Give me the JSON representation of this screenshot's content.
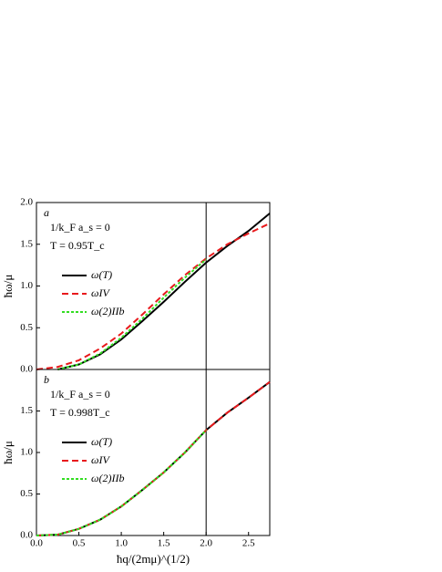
{
  "chart_data": [
    {
      "type": "line",
      "panel_label": "a",
      "annotations": [
        "1/k_F a_s = 0",
        "T = 0.95T_c"
      ],
      "y_label": "ħω/μ",
      "x": [
        0,
        0.25,
        0.5,
        0.75,
        1.0,
        1.25,
        1.5,
        1.75,
        2.0,
        2.25,
        2.5,
        2.75
      ],
      "series": [
        {
          "name": "ω(T)",
          "color": "#000000",
          "dash": "solid",
          "values": [
            null,
            0.0,
            0.06,
            0.18,
            0.36,
            0.58,
            0.81,
            1.05,
            1.28,
            1.48,
            1.66,
            1.87
          ]
        },
        {
          "name": "ωIV",
          "color": "#e8191c",
          "dash": "dashed",
          "values": [
            0.0,
            0.03,
            0.11,
            0.25,
            0.43,
            0.66,
            0.9,
            1.13,
            1.33,
            1.5,
            1.63,
            1.75
          ]
        },
        {
          "name": "ω(2)IIb",
          "color": "#33dd22",
          "dash": "dotted",
          "values": [
            null,
            0.0,
            0.06,
            0.19,
            0.38,
            0.61,
            0.86,
            1.1,
            1.32,
            null,
            null,
            null
          ]
        }
      ],
      "xlim": [
        0,
        2.75
      ],
      "ylim": [
        0,
        2.0
      ],
      "yticks": [
        {
          "value": 0,
          "label": "0.0"
        },
        {
          "value": 0.5,
          "label": "0.5"
        },
        {
          "value": 1,
          "label": "1.0"
        },
        {
          "value": 1.5,
          "label": "1.5"
        },
        {
          "value": 2,
          "label": "2.0"
        }
      ],
      "vline": 2
    },
    {
      "type": "line",
      "panel_label": "b",
      "annotations": [
        "1/k_F a_s = 0",
        "T = 0.998T_c"
      ],
      "y_label": "ħω/μ",
      "x_label": "ħq/(2mμ)^(1/2)",
      "x": [
        0,
        0.25,
        0.5,
        0.75,
        1.0,
        1.25,
        1.5,
        1.75,
        2.0,
        2.25,
        2.5,
        2.75
      ],
      "series": [
        {
          "name": "ω(T)",
          "color": "#000000",
          "dash": "solid",
          "values": [
            0.0,
            0.01,
            0.08,
            0.19,
            0.35,
            0.55,
            0.76,
            1.0,
            1.27,
            1.48,
            1.66,
            1.85
          ]
        },
        {
          "name": "ωIV",
          "color": "#e8191c",
          "dash": "dashed",
          "values": [
            0.0,
            0.01,
            0.08,
            0.19,
            0.35,
            0.55,
            0.76,
            1.0,
            1.27,
            1.48,
            1.66,
            1.85
          ]
        },
        {
          "name": "ω(2)IIb",
          "color": "#33dd22",
          "dash": "dotted",
          "values": [
            0.0,
            0.01,
            0.08,
            0.19,
            0.35,
            0.55,
            0.76,
            1.0,
            1.27,
            null,
            null,
            null
          ]
        }
      ],
      "xlim": [
        0,
        2.75
      ],
      "ylim": [
        0,
        2.0
      ],
      "xticks": [
        {
          "value": 0,
          "label": "0.0"
        },
        {
          "value": 0.5,
          "label": "0.5"
        },
        {
          "value": 1,
          "label": "1.0"
        },
        {
          "value": 1.5,
          "label": "1.5"
        },
        {
          "value": 2,
          "label": "2.0"
        },
        {
          "value": 2.5,
          "label": "2.5"
        }
      ],
      "yticks": [
        {
          "value": 0,
          "label": "0.0"
        },
        {
          "value": 0.5,
          "label": "0.5"
        },
        {
          "value": 1,
          "label": "1.0"
        },
        {
          "value": 1.5,
          "label": "1.5"
        }
      ],
      "vline": 2
    }
  ]
}
